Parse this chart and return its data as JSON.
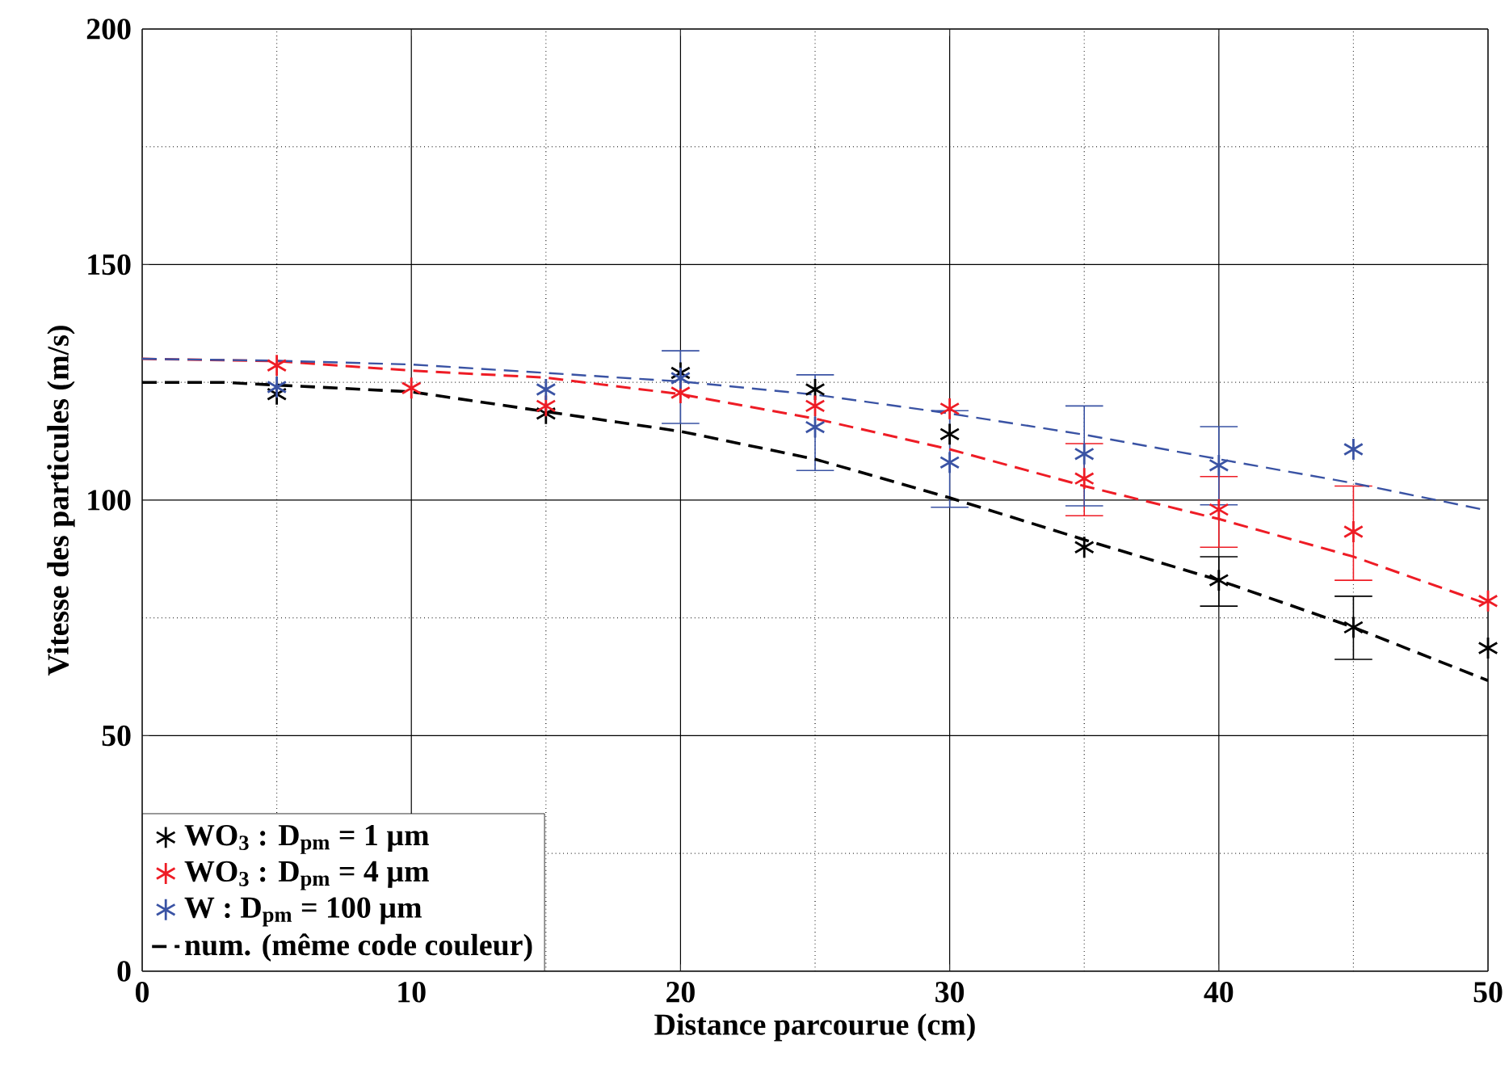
{
  "chart_data": {
    "type": "scatter",
    "xlabel": "Distance parcourue (cm)",
    "ylabel": "Vitesse des particules (m/s)",
    "xlim": [
      0,
      50
    ],
    "ylim": [
      0,
      200
    ],
    "xticks": [
      0,
      10,
      20,
      30,
      40,
      50
    ],
    "yticks": [
      0,
      50,
      100,
      150,
      200
    ],
    "grid": true,
    "legend": "bottom left",
    "marker": "cross",
    "series": [
      {
        "name": "WO$_{3}$ : D$_{pm}$ = 1 µm",
        "color": "#000000",
        "x": [
          5,
          15,
          20,
          25,
          30,
          35,
          40,
          45,
          50
        ],
        "values": [
          122.5,
          118.4,
          127,
          123.5,
          114,
          90,
          83,
          73,
          68.6
        ],
        "errors": [
          null,
          null,
          null,
          null,
          null,
          null,
          [
            77.5,
            88
          ],
          [
            66.2,
            79.6
          ],
          null
        ]
      },
      {
        "name": "WO$_{3}$ : D$_{pm}$ = 4 µm",
        "color": "#ee1c25",
        "x": [
          5,
          10,
          15,
          20,
          25,
          30,
          35,
          40,
          45,
          50
        ],
        "values": [
          128.6,
          123.8,
          120,
          122.8,
          120,
          119.4,
          104.6,
          98,
          93.3,
          78.6
        ],
        "errors": [
          null,
          null,
          null,
          null,
          null,
          null,
          [
            96.7,
            112
          ],
          [
            90,
            105
          ],
          [
            83,
            103
          ],
          null
        ]
      },
      {
        "name": "W : D$_{pm}$ = 100 µm",
        "color": "#3a53a4",
        "x": [
          5,
          15,
          20,
          25,
          30,
          35,
          40,
          45
        ],
        "values": [
          124,
          123.5,
          125.9,
          115.5,
          108,
          109.8,
          107.4,
          110.8
        ],
        "errors": [
          null,
          null,
          [
            116.3,
            131.7
          ],
          [
            106.3,
            126.6
          ],
          [
            98.5,
            119
          ],
          [
            98.8,
            120
          ],
          [
            99,
            115.6
          ],
          null
        ]
      },
      {
        "name": "num. (même code couleur)",
        "type": "line",
        "line_style": "dashed",
        "marker": "none",
        "color": "#000000",
        "x": [
          0,
          3,
          10,
          20,
          25,
          30,
          35,
          40,
          45,
          50
        ],
        "values": [
          125,
          125,
          123,
          114.6,
          108.7,
          100.5,
          91.6,
          83,
          73,
          61.7
        ]
      },
      {
        "type": "line",
        "line_style": "dashed",
        "marker": "none",
        "color": "#ee1c25",
        "x": [
          0,
          5,
          10,
          15,
          20,
          25,
          30,
          35,
          40,
          45,
          50
        ],
        "values": [
          130,
          129.5,
          127.5,
          126,
          122.5,
          117.3,
          110.8,
          103,
          96,
          88,
          77.9
        ]
      },
      {
        "type": "line",
        "line_style": "dashed",
        "marker": "none",
        "color": "#3a53a4",
        "x": [
          0,
          5,
          10,
          15,
          20,
          25,
          30,
          35,
          40,
          45,
          50
        ],
        "values": [
          130,
          129.6,
          128.8,
          127,
          125.2,
          122.4,
          118.4,
          113.9,
          108.7,
          103.6,
          97.8
        ]
      }
    ]
  }
}
